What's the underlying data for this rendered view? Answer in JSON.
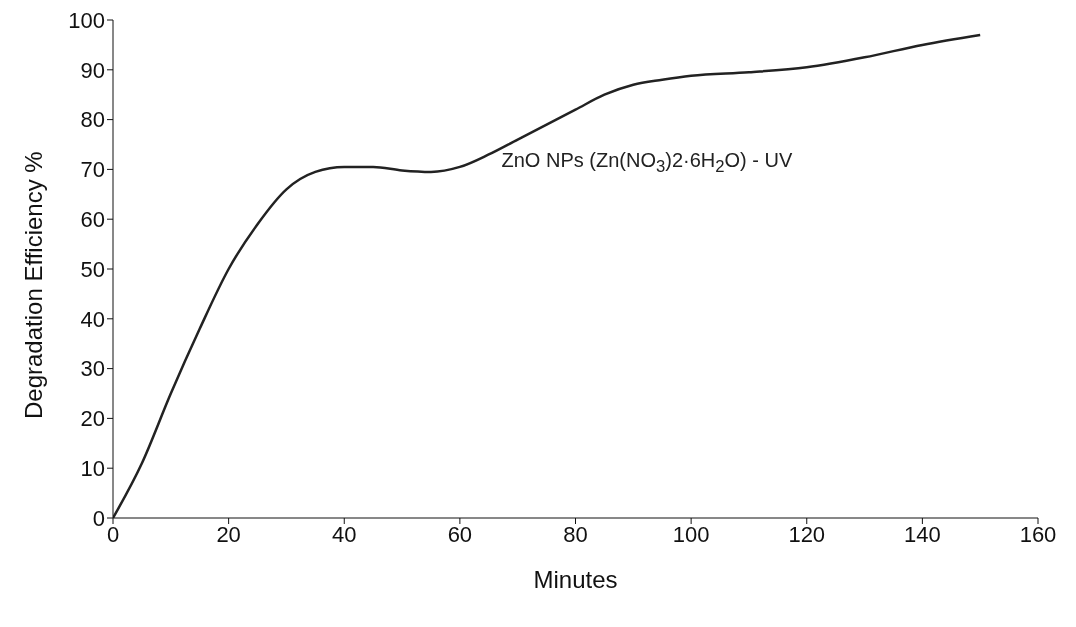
{
  "chart_data": {
    "type": "line",
    "xlabel": "Minutes",
    "ylabel": "Degradation Efficiency %",
    "xlim": [
      0,
      160
    ],
    "xticks": [
      0,
      20,
      40,
      60,
      80,
      100,
      120,
      140,
      160
    ],
    "ylim": [
      0,
      100
    ],
    "yticks": [
      0,
      10,
      20,
      30,
      40,
      50,
      60,
      70,
      80,
      90,
      100
    ],
    "grid": false,
    "legend": false,
    "marker": "none",
    "line_style": "solid",
    "series": [
      {
        "name": "ZnO NPs (Zn(NO$_{3}$)2·6H$_{2}$O) - UV",
        "color": "#222222",
        "x": [
          0,
          5,
          10,
          15,
          20,
          25,
          30,
          35,
          40,
          45,
          50,
          55,
          60,
          65,
          70,
          75,
          80,
          85,
          90,
          95,
          100,
          110,
          120,
          130,
          140,
          150
        ],
        "values": [
          0,
          11,
          25,
          38,
          50,
          59,
          66,
          69.5,
          70.5,
          70.5,
          69.8,
          69.5,
          70.5,
          73,
          76,
          79,
          82,
          85,
          87,
          88,
          88.8,
          89.5,
          90.5,
          92.5,
          95,
          97
        ]
      }
    ]
  }
}
